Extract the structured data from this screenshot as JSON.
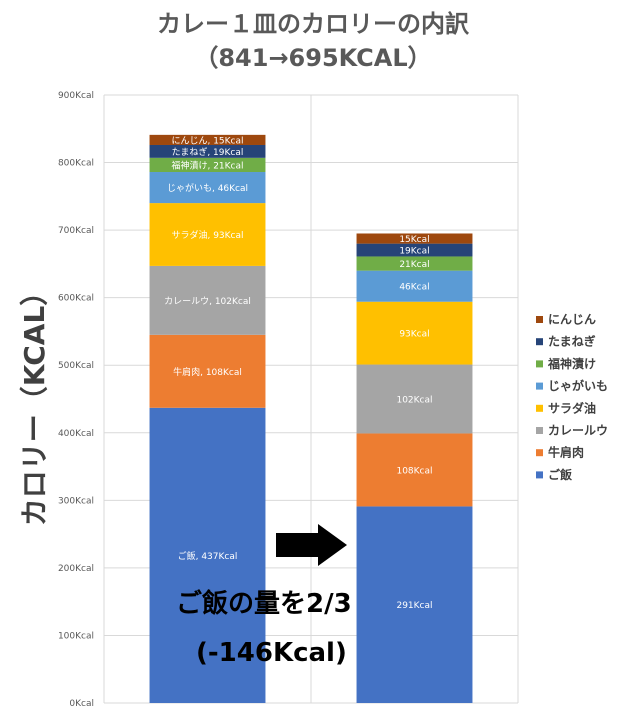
{
  "chart_data": {
    "type": "bar",
    "stacked": true,
    "title": "カレー１皿のカロリーの内訳",
    "subtitle": "（841→695KCAL）",
    "ylabel": "カロリー（KCAL）",
    "xlabel": "",
    "ylim": [
      0,
      900
    ],
    "yticks": [
      "0Kcal",
      "100Kcal",
      "200Kcal",
      "300Kcal",
      "400Kcal",
      "500Kcal",
      "600Kcal",
      "700Kcal",
      "800Kcal",
      "900Kcal"
    ],
    "grid": true,
    "legend_position": "right",
    "categories": [
      "",
      ""
    ],
    "series": [
      {
        "name": "ご飯",
        "color": "#4472C4",
        "values": [
          437,
          291
        ],
        "labels": [
          "ご飯, 437Kcal",
          "291Kcal"
        ]
      },
      {
        "name": "牛肩肉",
        "color": "#ED7D31",
        "values": [
          108,
          108
        ],
        "labels": [
          "牛肩肉, 108Kcal",
          "108Kcal"
        ]
      },
      {
        "name": "カレールウ",
        "color": "#A5A5A5",
        "values": [
          102,
          102
        ],
        "labels": [
          "カレールウ, 102Kcal",
          "102Kcal"
        ]
      },
      {
        "name": "サラダ油",
        "color": "#FFC000",
        "values": [
          93,
          93
        ],
        "labels": [
          "サラダ油, 93Kcal",
          "93Kcal"
        ]
      },
      {
        "name": "じゃがいも",
        "color": "#5B9BD5",
        "values": [
          46,
          46
        ],
        "labels": [
          "じゃがいも, 46Kcal",
          "46Kcal"
        ]
      },
      {
        "name": "福神漬け",
        "color": "#70AD47",
        "values": [
          21,
          21
        ],
        "labels": [
          "福神漬け, 21Kcal",
          "21Kcal"
        ]
      },
      {
        "name": "たまねぎ",
        "color": "#264478",
        "values": [
          19,
          19
        ],
        "labels": [
          "たまねぎ, 19Kcal",
          "19Kcal"
        ]
      },
      {
        "name": "にんじん",
        "color": "#9E480E",
        "values": [
          15,
          15
        ],
        "labels": [
          "にんじん, 15Kcal",
          "15Kcal"
        ]
      }
    ],
    "annotation": {
      "line1": "ご飯の量を2/3",
      "line2": "(-146Kcal)"
    }
  }
}
